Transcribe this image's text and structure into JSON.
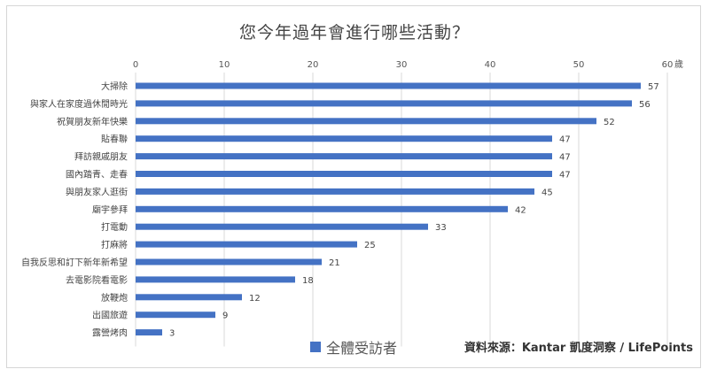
{
  "chart_data": {
    "type": "bar",
    "orientation": "horizontal",
    "title": "您今年過年會進行哪些活動？",
    "x_unit": "歲",
    "xlim": [
      0,
      60
    ],
    "xticks": [
      0,
      10,
      20,
      30,
      40,
      50,
      60
    ],
    "grid": true,
    "legend_position": "bottom",
    "color": "#4472c4",
    "categories": [
      "大掃除",
      "與家人在家度過休閒時光",
      "祝賀朋友新年快樂",
      "貼春聯",
      "拜訪親戚朋友",
      "國內踏青、走春",
      "與朋友家人逛街",
      "廟宇參拜",
      "打電動",
      "打麻將",
      "自我反思和訂下新年新希望",
      "去電影院看電影",
      "放鞭炮",
      "出國旅遊",
      "露營烤肉"
    ],
    "series": [
      {
        "name": "全體受訪者",
        "values": [
          57,
          56,
          52,
          47,
          47,
          47,
          45,
          42,
          33,
          25,
          21,
          18,
          12,
          9,
          3
        ]
      }
    ]
  },
  "source_text": "資料來源：Kantar 凱度洞察 / LifePoints"
}
